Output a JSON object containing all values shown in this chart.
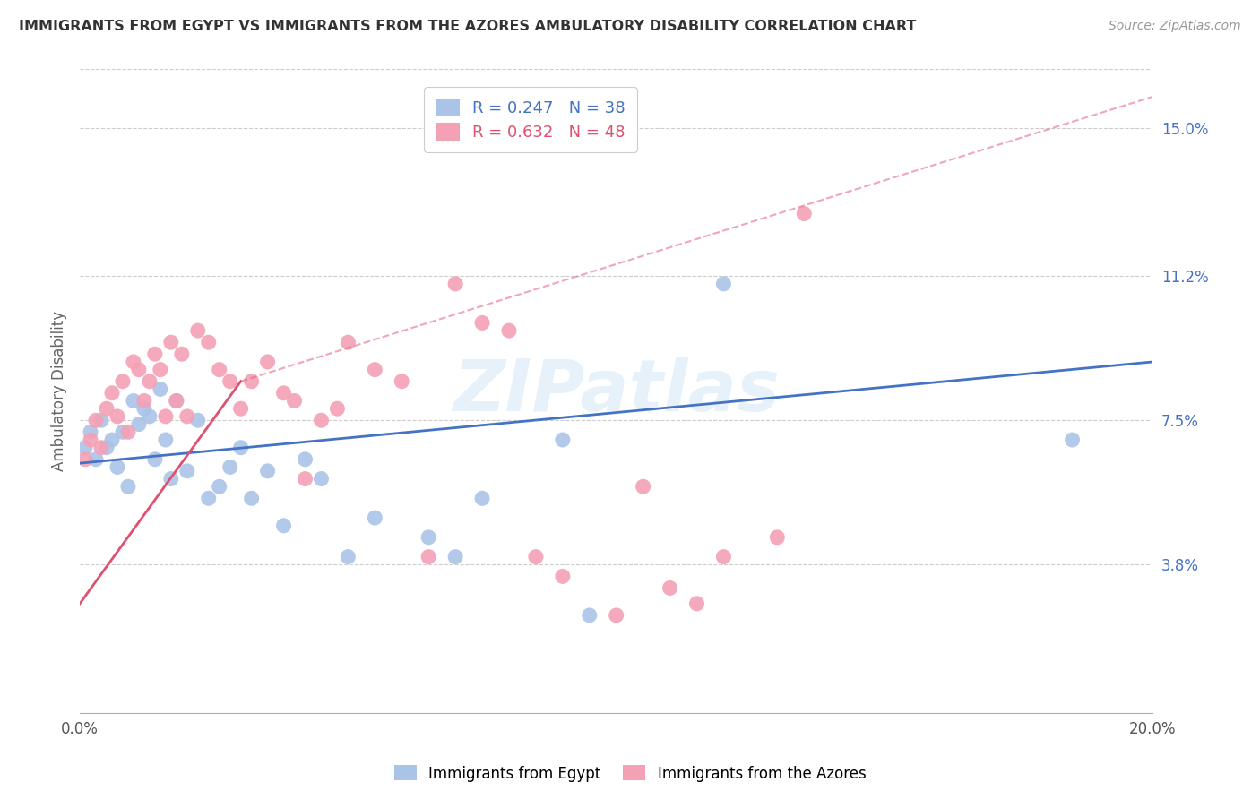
{
  "title": "IMMIGRANTS FROM EGYPT VS IMMIGRANTS FROM THE AZORES AMBULATORY DISABILITY CORRELATION CHART",
  "source": "Source: ZipAtlas.com",
  "ylabel": "Ambulatory Disability",
  "xlim": [
    0.0,
    0.2
  ],
  "ylim": [
    0.0,
    0.165
  ],
  "ytick_labels_right": [
    "15.0%",
    "11.2%",
    "7.5%",
    "3.8%"
  ],
  "ytick_values_right": [
    0.15,
    0.112,
    0.075,
    0.038
  ],
  "grid_color": "#cccccc",
  "background_color": "#ffffff",
  "egypt_color": "#aac4e8",
  "azores_color": "#f4a0b5",
  "egypt_line_color": "#4472c4",
  "azores_line_color": "#e05070",
  "egypt_R": 0.247,
  "egypt_N": 38,
  "azores_R": 0.632,
  "azores_N": 48,
  "legend_label_egypt": "Immigrants from Egypt",
  "legend_label_azores": "Immigrants from the Azores",
  "watermark": "ZIPatlas",
  "egypt_x": [
    0.001,
    0.002,
    0.003,
    0.004,
    0.005,
    0.006,
    0.007,
    0.008,
    0.009,
    0.01,
    0.011,
    0.012,
    0.013,
    0.014,
    0.015,
    0.016,
    0.017,
    0.018,
    0.02,
    0.022,
    0.024,
    0.026,
    0.028,
    0.03,
    0.032,
    0.035,
    0.038,
    0.042,
    0.045,
    0.05,
    0.055,
    0.065,
    0.07,
    0.075,
    0.09,
    0.095,
    0.12,
    0.185
  ],
  "egypt_y": [
    0.068,
    0.072,
    0.065,
    0.075,
    0.068,
    0.07,
    0.063,
    0.072,
    0.058,
    0.08,
    0.074,
    0.078,
    0.076,
    0.065,
    0.083,
    0.07,
    0.06,
    0.08,
    0.062,
    0.075,
    0.055,
    0.058,
    0.063,
    0.068,
    0.055,
    0.062,
    0.048,
    0.065,
    0.06,
    0.04,
    0.05,
    0.045,
    0.04,
    0.055,
    0.07,
    0.025,
    0.11,
    0.07
  ],
  "azores_x": [
    0.001,
    0.002,
    0.003,
    0.004,
    0.005,
    0.006,
    0.007,
    0.008,
    0.009,
    0.01,
    0.011,
    0.012,
    0.013,
    0.014,
    0.015,
    0.016,
    0.017,
    0.018,
    0.019,
    0.02,
    0.022,
    0.024,
    0.026,
    0.028,
    0.03,
    0.032,
    0.035,
    0.038,
    0.04,
    0.042,
    0.045,
    0.048,
    0.05,
    0.055,
    0.06,
    0.065,
    0.07,
    0.075,
    0.08,
    0.085,
    0.09,
    0.1,
    0.105,
    0.11,
    0.115,
    0.12,
    0.13,
    0.135
  ],
  "azores_y": [
    0.065,
    0.07,
    0.075,
    0.068,
    0.078,
    0.082,
    0.076,
    0.085,
    0.072,
    0.09,
    0.088,
    0.08,
    0.085,
    0.092,
    0.088,
    0.076,
    0.095,
    0.08,
    0.092,
    0.076,
    0.098,
    0.095,
    0.088,
    0.085,
    0.078,
    0.085,
    0.09,
    0.082,
    0.08,
    0.06,
    0.075,
    0.078,
    0.095,
    0.088,
    0.085,
    0.04,
    0.11,
    0.1,
    0.098,
    0.04,
    0.035,
    0.025,
    0.058,
    0.032,
    0.028,
    0.04,
    0.045,
    0.128
  ]
}
